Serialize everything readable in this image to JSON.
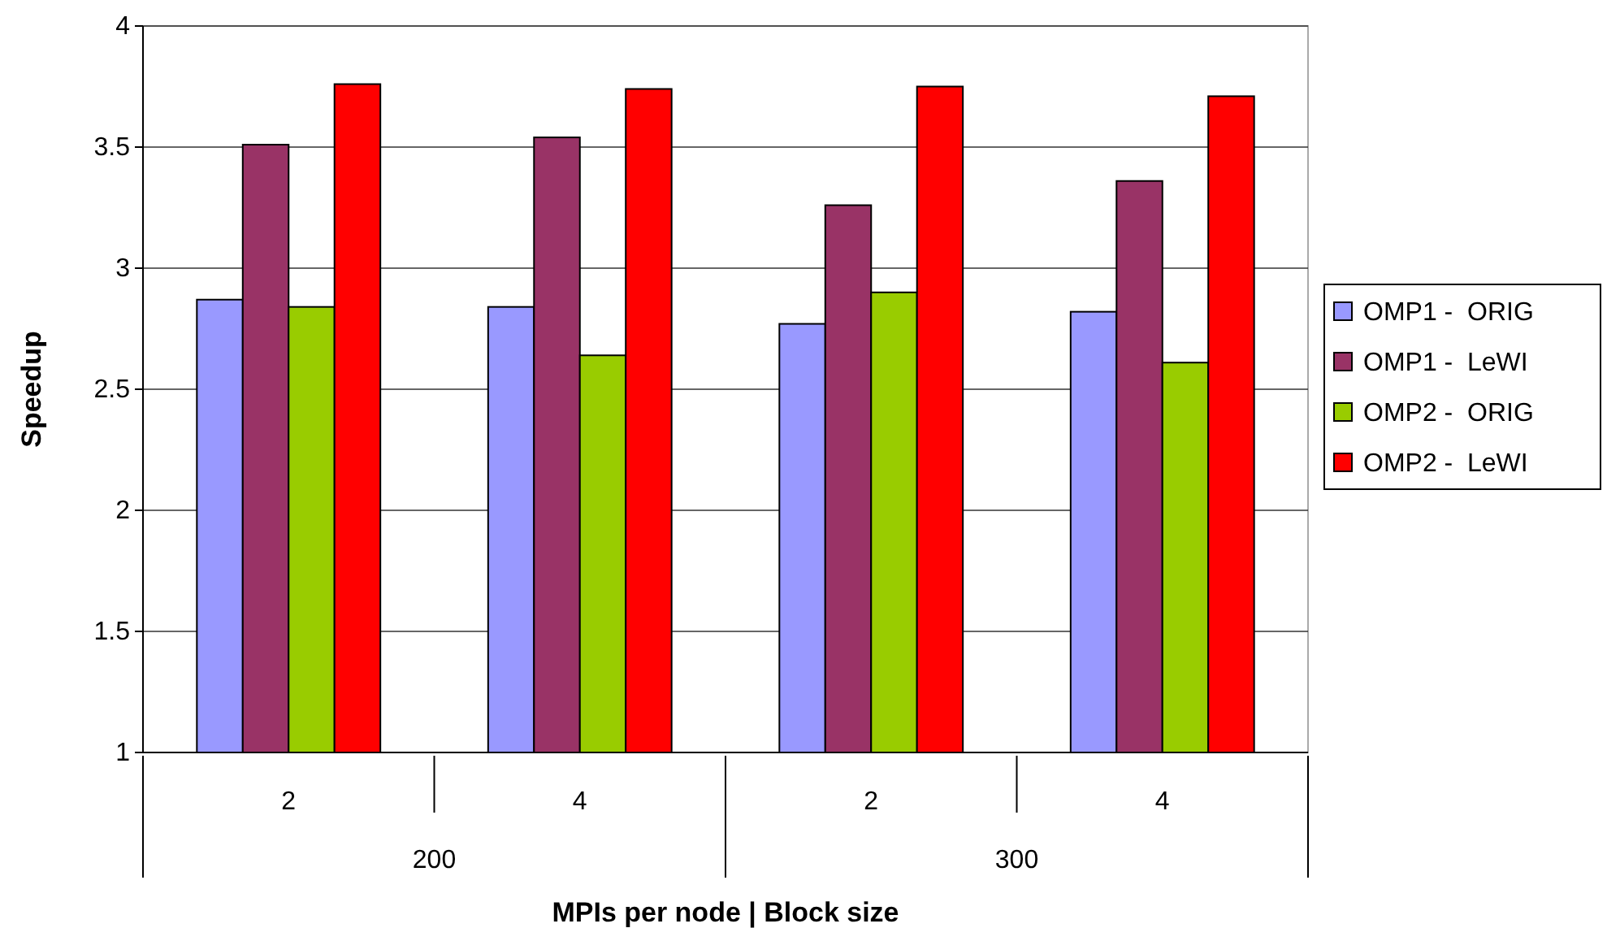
{
  "chart_data": {
    "type": "bar",
    "ylabel": "Speedup",
    "xlabel": "MPIs per node | Block size",
    "categories": [
      "2",
      "4",
      "2",
      "4"
    ],
    "annotations": [
      "200",
      "300"
    ],
    "series": [
      {
        "name": "OMP1 -  ORIG",
        "color": "#9999ff",
        "values": [
          2.87,
          2.84,
          2.77,
          2.82
        ]
      },
      {
        "name": "OMP1 -  LeWI",
        "color": "#993366",
        "values": [
          3.51,
          3.54,
          3.26,
          3.36
        ]
      },
      {
        "name": "OMP2 -  ORIG",
        "color": "#99cc00",
        "values": [
          2.84,
          2.64,
          2.9,
          2.61
        ]
      },
      {
        "name": "OMP2 -  LeWI",
        "color": "#ff0000",
        "values": [
          3.76,
          3.74,
          3.75,
          3.71
        ]
      }
    ],
    "ylim": [
      1,
      4
    ],
    "yticks": [
      1,
      1.5,
      2,
      2.5,
      3,
      3.5,
      4
    ],
    "grid": "y",
    "legend": "right"
  }
}
